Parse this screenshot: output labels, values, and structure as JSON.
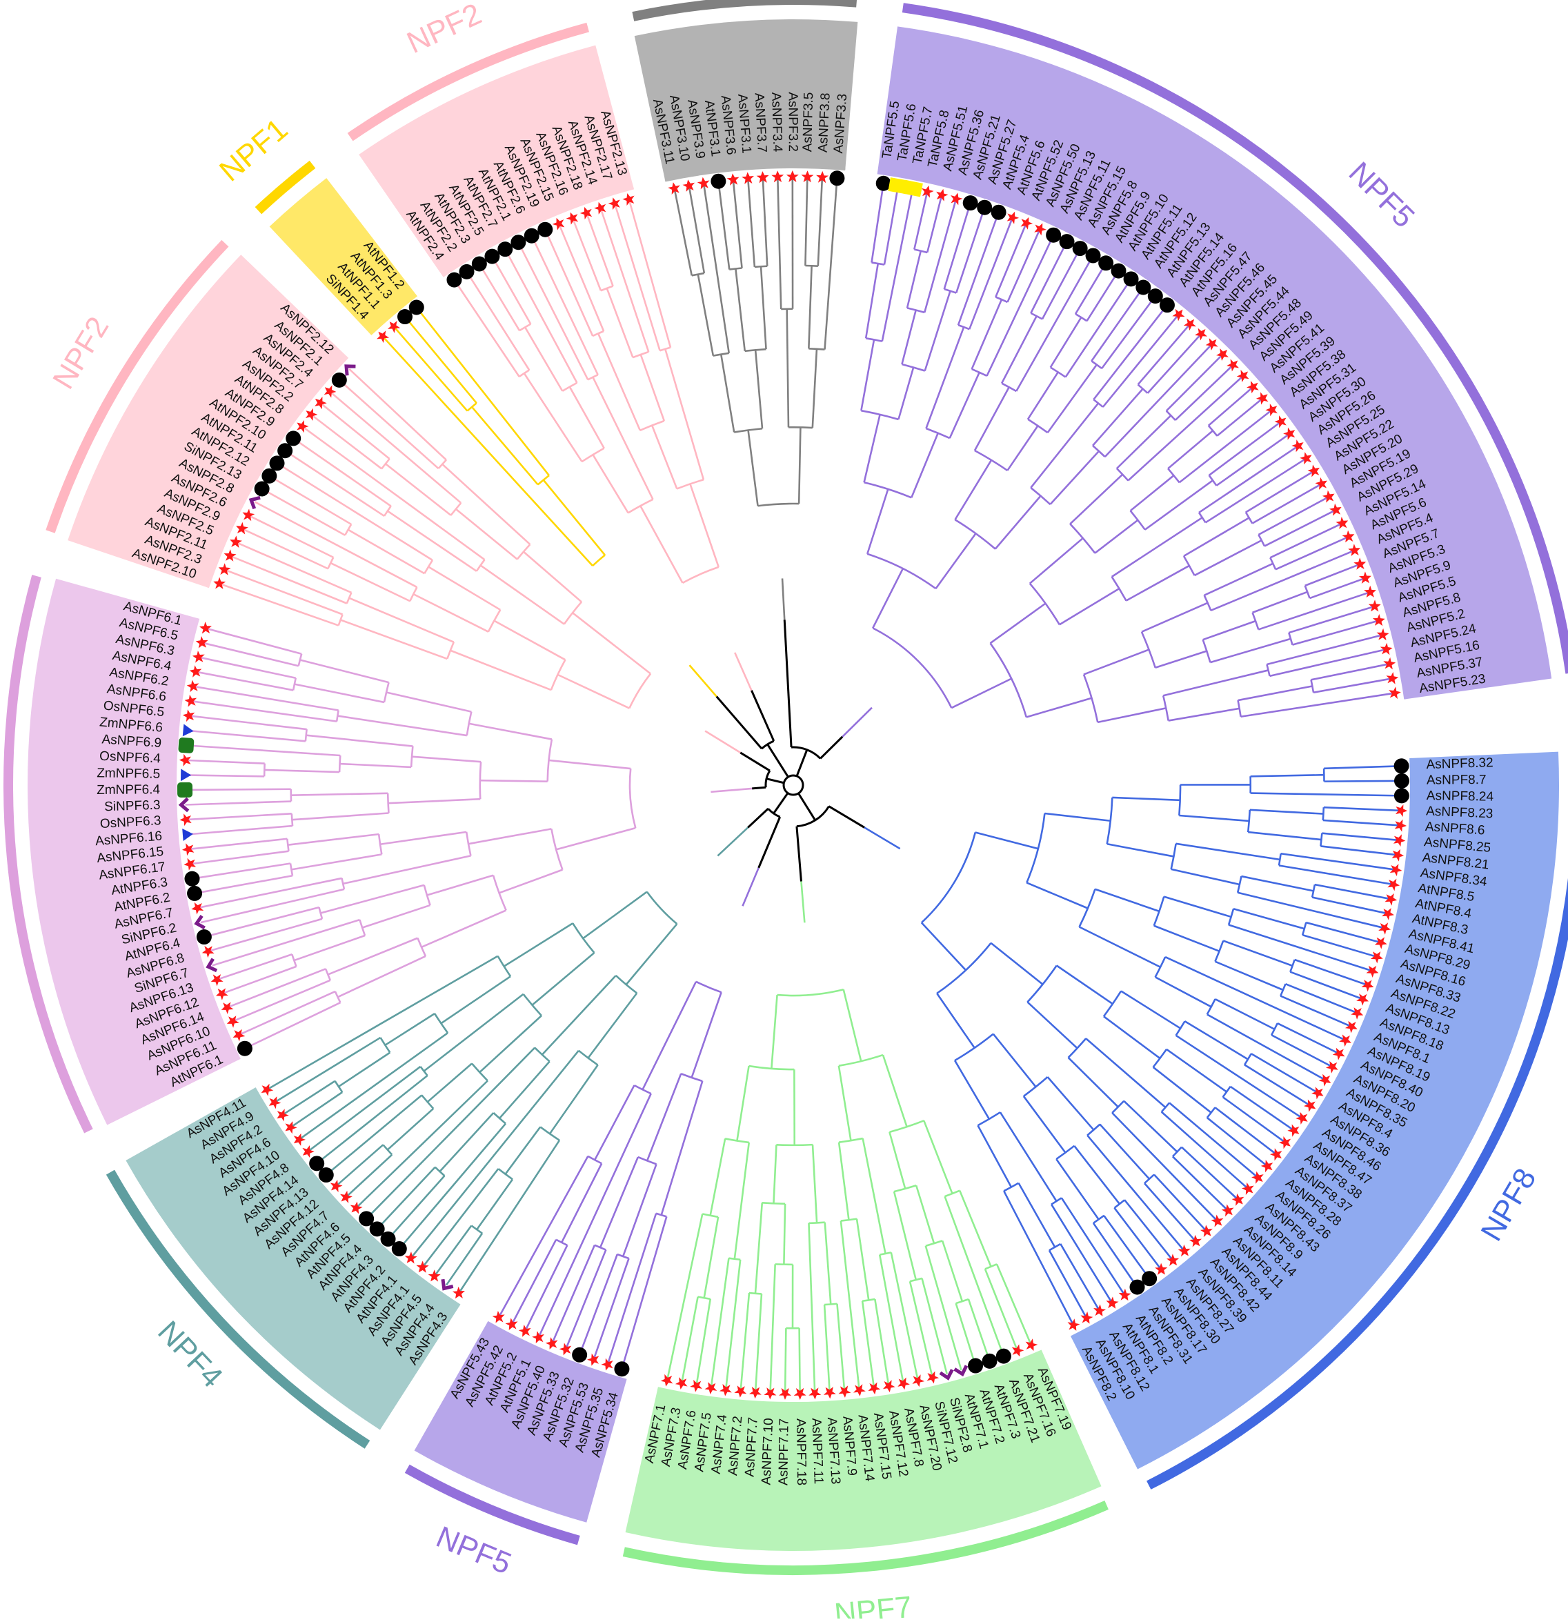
{
  "figure": {
    "center_line_color": "#000000",
    "leaf_marker_color": "#ff1a1a",
    "legend_markers": [
      "red-star",
      "black-circle",
      "purple-chevron",
      "blue-triangle",
      "green-rounded-square",
      "yellow-box"
    ]
  },
  "clades": [
    {
      "id": "NPF8",
      "label": "NPF8",
      "color": "#4169e1",
      "bg": "#8faaf0",
      "leaves": [
        "AsNPF8.32",
        "AsNPF8.7",
        "AsNPF8.24",
        "AsNPF8.23",
        "AsNPF8.6",
        "AsNPF8.25",
        "AsNPF8.21",
        "AsNPF8.34",
        "AtNPF8.5",
        "AtNPF8.4",
        "AtNPF8.3",
        "AsNPF8.41",
        "AsNPF8.29",
        "AsNPF8.16",
        "AsNPF8.33",
        "AsNPF8.22",
        "AsNPF8.13",
        "AsNPF8.18",
        "AsNPF8.1",
        "AsNPF8.19",
        "AsNPF8.40",
        "AsNPF8.20",
        "AsNPF8.35",
        "AsNPF8.4",
        "AsNPF8.36",
        "AsNPF8.46",
        "AsNPF8.47",
        "AsNPF8.38",
        "AsNPF8.37",
        "AsNPF8.28",
        "AsNPF8.26",
        "AsNPF8.43",
        "AsNPF8.9",
        "AsNPF8.14",
        "AsNPF8.11",
        "AsNPF8.44",
        "AsNPF8.42",
        "AsNPF8.39",
        "AsNPF8.27",
        "AsNPF8.30",
        "AsNPF8.17",
        "AsNPF8.31",
        "AtNPF8.2",
        "AtNPF8.1",
        "AsNPF8.12",
        "AsNPF8.10",
        "AsNPF8.2"
      ],
      "markers": {
        "circle": [
          0,
          1,
          2,
          40,
          41
        ]
      }
    },
    {
      "id": "NPF7",
      "label": "NPF7",
      "color": "#90ee90",
      "bg": "#b8f3b8",
      "leaves": [
        "AsNPF7.19",
        "AsNPF7.16",
        "AsNPF7.21",
        "AtNPF7.3",
        "AtNPF7.2",
        "AtNPF7.1",
        "SiNPF2.8",
        "SiNPF7.12",
        "AsNPF7.20",
        "AsNPF7.8",
        "AsNPF7.12",
        "AsNPF7.15",
        "AsNPF7.14",
        "AsNPF7.9",
        "AsNPF7.13",
        "AsNPF7.11",
        "AsNPF7.18",
        "AsNPF7.17",
        "AsNPF7.10",
        "AsNPF7.7",
        "AsNPF7.2",
        "AsNPF7.4",
        "AsNPF7.5",
        "AsNPF7.6",
        "AsNPF7.3",
        "AsNPF7.1"
      ],
      "markers": {
        "circle": [
          2,
          3,
          4
        ],
        "chevron": [
          5,
          6
        ]
      }
    },
    {
      "id": "NPF5a",
      "label": "NPF5",
      "color": "#9370db",
      "bg": "#b7a6ea",
      "leaves": [
        "AsNPF5.34",
        "AsNPF5.35",
        "AsNPF5.53",
        "AsNPF5.32",
        "AsNPF5.33",
        "AsNPF5.40",
        "AtNPF5.1",
        "AtNPF5.2",
        "AsNPF5.42",
        "AsNPF5.43"
      ],
      "markers": {
        "circle": [
          0,
          3
        ]
      }
    },
    {
      "id": "NPF4",
      "label": "NPF4",
      "color": "#5f9ea0",
      "bg": "#a5cccb",
      "leaves": [
        "AsNPF4.3",
        "AsNPF4.4",
        "AsNPF4.5",
        "AsNPF4.1",
        "AtNPF4.1",
        "AtNPF4.2",
        "AtNPF4.3",
        "AtNPF4.4",
        "AtNPF4.5",
        "AtNPF4.6",
        "AsNPF4.7",
        "AsNPF4.12",
        "AsNPF4.13",
        "AsNPF4.14",
        "AsNPF4.8",
        "AsNPF4.10",
        "AsNPF4.6",
        "AsNPF4.2",
        "AsNPF4.9",
        "AsNPF4.11"
      ],
      "markers": {
        "circle": [
          5,
          6,
          7,
          8,
          12,
          13
        ],
        "chevron": [
          1
        ]
      }
    },
    {
      "id": "NPF6",
      "label": "NPF6",
      "color": "#dda0dd",
      "bg": "#ecc7ec",
      "leaves": [
        "AtNPF6.1",
        "AsNPF6.11",
        "AsNPF6.10",
        "AsNPF6.14",
        "AsNPF6.12",
        "AsNPF6.13",
        "SiNPF6.7",
        "AsNPF6.8",
        "AtNPF6.4",
        "SiNPF6.2",
        "AsNPF6.7",
        "AtNPF6.2",
        "AtNPF6.3",
        "AsNPF6.17",
        "AsNPF6.15",
        "AsNPF6.16",
        "OsNPF6.3",
        "SiNPF6.3",
        "ZmNPF6.4",
        "ZmNPF6.5",
        "OsNPF6.4",
        "AsNPF6.9",
        "ZmNPF6.6",
        "OsNPF6.5",
        "AsNPF6.6",
        "AsNPF6.2",
        "AsNPF6.4",
        "AsNPF6.3",
        "AsNPF6.5",
        "AsNPF6.1"
      ],
      "markers": {
        "circle": [
          0,
          8,
          11,
          12
        ],
        "chevron": [
          6,
          9,
          17
        ],
        "triangle": [
          15,
          19,
          22
        ],
        "square": [
          18,
          21
        ]
      }
    },
    {
      "id": "NPF2a",
      "label": "NPF2",
      "color": "#ffb6c1",
      "bg": "#ffd4db",
      "leaves": [
        "AsNPF2.10",
        "AsNPF2.3",
        "AsNPF2.11",
        "AsNPF2.5",
        "AsNPF2.9",
        "AsNPF2.6",
        "AsNPF2.8",
        "SiNPF2.13",
        "AtNPF2.12",
        "AtNPF2.11",
        "AtNPF2.10",
        "AtNPF2.9",
        "AtNPF2.8",
        "AsNPF2.2",
        "AsNPF2.7",
        "AsNPF2.4",
        "AsNPF2.1",
        "AsNPF2.12"
      ],
      "markers": {
        "circle": [
          7,
          8,
          9,
          10,
          11,
          16
        ],
        "chevron": [
          6,
          17
        ]
      }
    },
    {
      "id": "NPF1",
      "label": "NPF1",
      "color": "#ffd700",
      "bg": "#ffe868",
      "leaves": [
        "SiNPF1.4",
        "AtNPF1.1",
        "AtNPF1.3",
        "AtNPF1.2"
      ],
      "markers": {
        "circle": [
          2,
          3
        ]
      }
    },
    {
      "id": "NPF2b",
      "label": "NPF2",
      "color": "#ffb6c1",
      "bg": "#ffd4db",
      "leaves": [
        "AtNPF2.4",
        "AtNPF2.2",
        "AtNPF2.3",
        "AtNPF2.5",
        "AtNPF2.7",
        "AtNPF2.1",
        "AtNPF2.6",
        "AsNPF2.19",
        "AsNPF2.15",
        "AsNPF2.16",
        "AsNPF2.18",
        "AsNPF2.14",
        "AsNPF2.17",
        "AsNPF2.13"
      ],
      "markers": {
        "circle": [
          0,
          1,
          2,
          3,
          4,
          5,
          6,
          7
        ]
      }
    },
    {
      "id": "NPF3",
      "label": "NPF3",
      "color": "#808080",
      "bg": "#b3b3b3",
      "leaves": [
        "AsNPF3.11",
        "AsNPF3.10",
        "AsNPF3.9",
        "AtNPF3.1",
        "AsNPF3.6",
        "AsNPF3.1",
        "AsNPF3.7",
        "AsNPF3.4",
        "AsNPF3.2",
        "AsNPF3.5",
        "AsNPF3.8",
        "AsNPF3.3"
      ],
      "markers": {
        "circle": [
          3,
          11
        ]
      }
    },
    {
      "id": "NPF5b",
      "label": "NPF5",
      "color": "#9370db",
      "bg": "#b7a6ea",
      "leaves": [
        "TaNPF5.5",
        "TaNPF5.6",
        "TaNPF5.7",
        "TaNPF5.8",
        "AsNPF5.51",
        "AsNPF5.36",
        "AsNPF5.21",
        "AsNPF5.27",
        "AtNPF5.4",
        "AtNPF5.6",
        "AtNPF5.52",
        "AsNPF5.50",
        "AsNPF5.13",
        "AsNPF5.11",
        "AsNPF5.15",
        "AsNPF5.8",
        "AtNPF5.9",
        "AtNPF5.10",
        "AtNPF5.11",
        "AtNPF5.12",
        "AtNPF5.13",
        "AtNPF5.14",
        "AtNPF5.16",
        "AsNPF5.47",
        "AsNPF5.46",
        "AsNPF5.45",
        "AsNPF5.44",
        "AsNPF5.48",
        "AsNPF5.49",
        "AsNPF5.41",
        "AsNPF5.39",
        "AsNPF5.38",
        "AsNPF5.31",
        "AsNPF5.30",
        "AsNPF5.26",
        "AsNPF5.25",
        "AsNPF5.22",
        "AsNPF5.20",
        "AsNPF5.19",
        "AsNPF5.29",
        "AsNPF5.14",
        "AsNPF5.6",
        "AsNPF5.4",
        "AsNPF5.7",
        "AsNPF5.3",
        "AsNPF5.9",
        "AsNPF5.5",
        "AsNPF5.8",
        "AsNPF5.2",
        "AsNPF5.24",
        "AsNPF5.16",
        "AsNPF5.37",
        "AsNPF5.23"
      ],
      "markers": {
        "yellow": [
          1,
          2
        ],
        "circle": [
          0,
          6,
          7,
          8,
          12,
          13,
          14,
          15,
          16,
          17,
          18,
          19,
          20,
          21
        ]
      }
    }
  ]
}
